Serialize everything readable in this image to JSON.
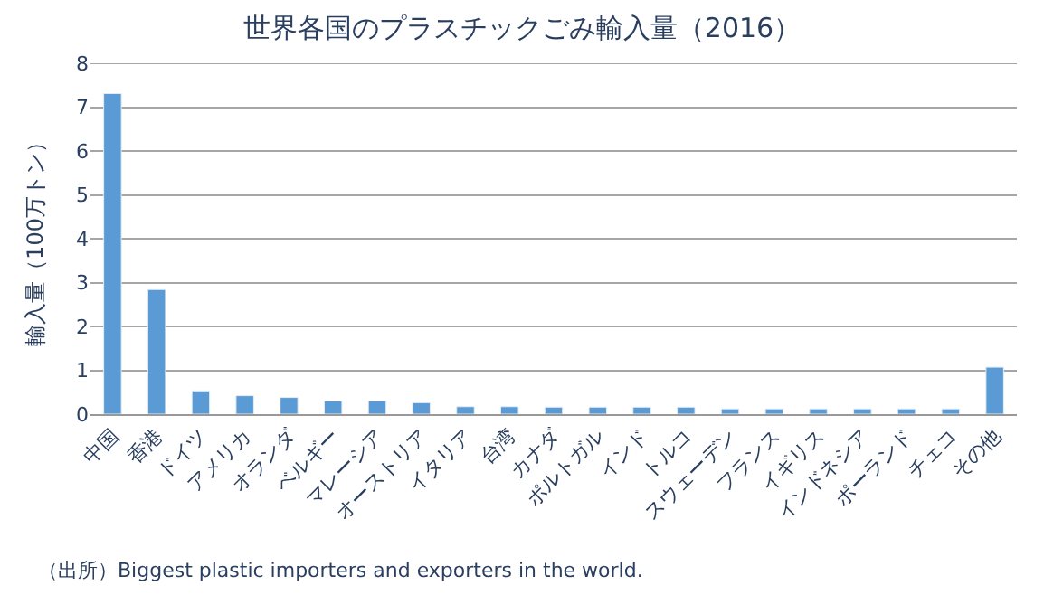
{
  "chart_data": {
    "type": "bar",
    "title": "世界各国のプラスチックごみ輸入量（2016）",
    "ylabel": "輸入量（100万トン）",
    "categories": [
      "中国",
      "香港",
      "ドイツ",
      "アメリカ",
      "オランダ",
      "ベルギー",
      "マレーシア",
      "オーストリア",
      "イタリア",
      "台湾",
      "カナダ",
      "ポルトガル",
      "インド",
      "トルコ",
      "スウェーデン",
      "フランス",
      "イギリス",
      "インドネシア",
      "ポーランド",
      "チェコ",
      "その他"
    ],
    "values": [
      7.31,
      2.84,
      0.53,
      0.42,
      0.38,
      0.3,
      0.3,
      0.26,
      0.17,
      0.17,
      0.16,
      0.16,
      0.16,
      0.16,
      0.12,
      0.12,
      0.12,
      0.12,
      0.12,
      0.12,
      1.07
    ],
    "color": "#5b9bd5",
    "ylim": [
      0,
      8
    ],
    "yticks": [
      0,
      1,
      2,
      3,
      4,
      5,
      6,
      7,
      8
    ],
    "grid": "y",
    "annotations": [
      "（出所）Biggest plastic importers and exporters in the world."
    ]
  }
}
